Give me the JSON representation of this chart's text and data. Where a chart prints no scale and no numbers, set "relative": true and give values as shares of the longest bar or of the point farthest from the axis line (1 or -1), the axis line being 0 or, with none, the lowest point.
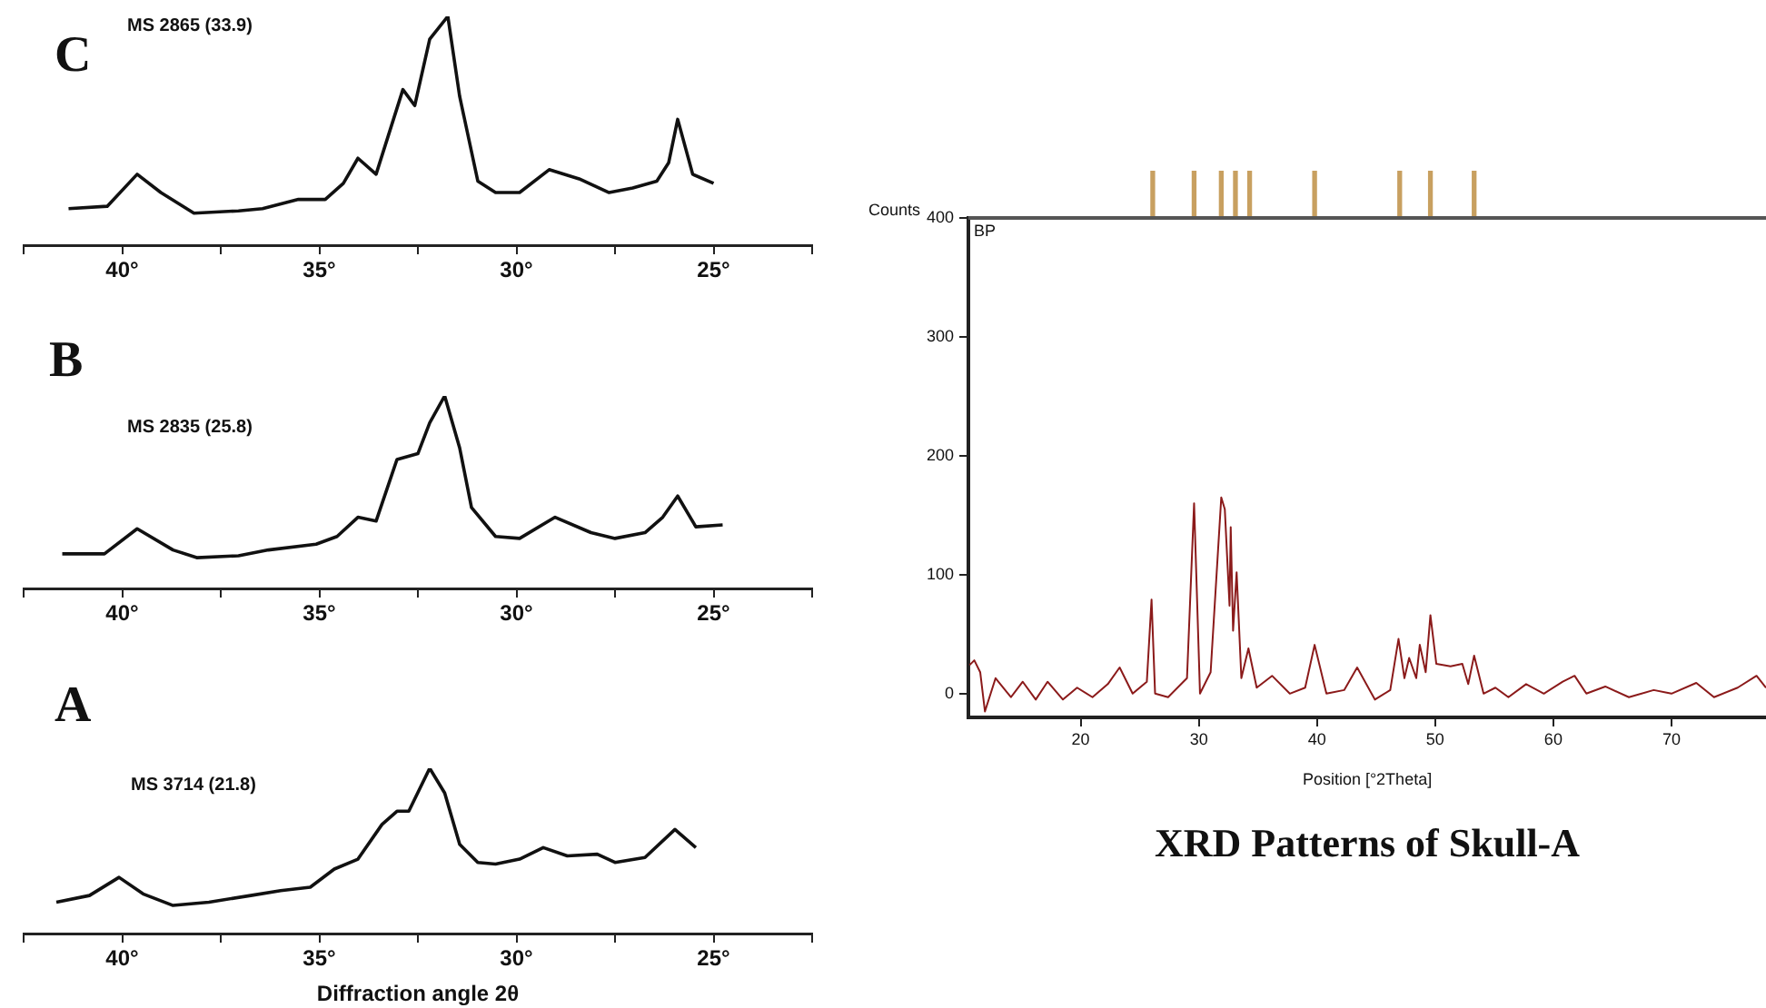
{
  "chart_data": [
    {
      "type": "line",
      "title": "C",
      "subtitle": "MS 2865 (33.9)",
      "relative": true,
      "grid": false,
      "legend": false,
      "marker": "none",
      "line_style": "solid",
      "xlim": [
        42.5,
        22.5
      ],
      "xticks": [
        {
          "value": 42.5,
          "label": null
        },
        {
          "value": 40,
          "label": "40°"
        },
        {
          "value": 37.5,
          "label": null
        },
        {
          "value": 35,
          "label": "35°"
        },
        {
          "value": 32.5,
          "label": null
        },
        {
          "value": 30,
          "label": "30°"
        },
        {
          "value": 27.5,
          "label": null
        },
        {
          "value": 25,
          "label": "25°"
        },
        {
          "value": 22.5,
          "label": null
        }
      ],
      "x": [
        41.36,
        40.38,
        39.62,
        39.02,
        38.18,
        37.05,
        36.44,
        35.53,
        34.85,
        34.39,
        34.02,
        33.56,
        32.88,
        32.58,
        32.2,
        31.74,
        31.44,
        30.98,
        30.53,
        29.92,
        29.17,
        28.41,
        27.65,
        27.05,
        26.44,
        26.14,
        25.91,
        25.53,
        25.0
      ],
      "series": [
        {
          "color": "#111111",
          "values": [
            0.16,
            0.17,
            0.31,
            0.23,
            0.14,
            0.15,
            0.16,
            0.2,
            0.2,
            0.27,
            0.38,
            0.31,
            0.68,
            0.61,
            0.9,
            1,
            0.65,
            0.28,
            0.23,
            0.23,
            0.33,
            0.29,
            0.23,
            0.25,
            0.28,
            0.36,
            0.55,
            0.31,
            0.27
          ]
        }
      ]
    },
    {
      "type": "line",
      "title": "B",
      "subtitle": "MS 2835 (25.8)",
      "relative": true,
      "grid": false,
      "legend": false,
      "marker": "none",
      "line_style": "solid",
      "xlim": [
        42.5,
        22.5
      ],
      "xticks": [
        {
          "value": 42.5,
          "label": null
        },
        {
          "value": 40,
          "label": "40°"
        },
        {
          "value": 37.5,
          "label": null
        },
        {
          "value": 35,
          "label": "35°"
        },
        {
          "value": 32.5,
          "label": null
        },
        {
          "value": 30,
          "label": "30°"
        },
        {
          "value": 27.5,
          "label": null
        },
        {
          "value": 25,
          "label": "25°"
        },
        {
          "value": 22.5,
          "label": null
        }
      ],
      "x": [
        41.52,
        40.45,
        39.62,
        38.71,
        38.11,
        37.05,
        36.29,
        35.08,
        34.55,
        34.02,
        33.56,
        33.03,
        32.5,
        32.2,
        31.82,
        31.44,
        31.14,
        30.53,
        29.92,
        29.02,
        28.11,
        27.5,
        26.74,
        26.29,
        25.91,
        25.45,
        24.77
      ],
      "series": [
        {
          "color": "#111111",
          "values": [
            0.18,
            0.18,
            0.31,
            0.2,
            0.16,
            0.17,
            0.2,
            0.23,
            0.27,
            0.37,
            0.35,
            0.67,
            0.7,
            0.86,
            1,
            0.73,
            0.42,
            0.27,
            0.26,
            0.37,
            0.29,
            0.26,
            0.29,
            0.37,
            0.48,
            0.32,
            0.33
          ]
        }
      ]
    },
    {
      "type": "line",
      "title": "A",
      "subtitle": "MS 3714 (21.8)",
      "xlabel": "Diffraction angle 2θ",
      "relative": true,
      "grid": false,
      "legend": false,
      "marker": "none",
      "line_style": "solid",
      "xlim": [
        42.5,
        22.5
      ],
      "xticks": [
        {
          "value": 42.5,
          "label": null
        },
        {
          "value": 40,
          "label": "40°"
        },
        {
          "value": 37.5,
          "label": null
        },
        {
          "value": 35,
          "label": "35°"
        },
        {
          "value": 32.5,
          "label": null
        },
        {
          "value": 30,
          "label": "30°"
        },
        {
          "value": 27.5,
          "label": null
        },
        {
          "value": 25,
          "label": "25°"
        },
        {
          "value": 22.5,
          "label": null
        }
      ],
      "x": [
        41.67,
        40.83,
        40.08,
        39.47,
        38.71,
        37.8,
        36.74,
        35.98,
        35.23,
        34.62,
        34.02,
        33.41,
        33.03,
        32.73,
        32.2,
        31.82,
        31.44,
        30.98,
        30.53,
        29.92,
        29.32,
        28.71,
        27.95,
        27.5,
        26.74,
        25.98,
        25.45
      ],
      "series": [
        {
          "color": "#111111",
          "values": [
            0.19,
            0.23,
            0.34,
            0.24,
            0.17,
            0.19,
            0.23,
            0.26,
            0.28,
            0.39,
            0.45,
            0.66,
            0.74,
            0.74,
            1,
            0.85,
            0.54,
            0.43,
            0.42,
            0.45,
            0.52,
            0.47,
            0.48,
            0.43,
            0.46,
            0.63,
            0.52
          ]
        }
      ]
    },
    {
      "type": "line",
      "title": "XRD Patterns of Skull-A",
      "xlabel": "Position [°2Theta]",
      "ylabel": "Counts",
      "annotations": [
        "BP"
      ],
      "grid": false,
      "legend": false,
      "marker": "none",
      "line_style": "solid",
      "xlim": [
        10.5,
        78
      ],
      "xticks": [
        20,
        30,
        40,
        50,
        60,
        70
      ],
      "ylim": [
        -20,
        400
      ],
      "yticks": [
        0,
        100,
        200,
        300,
        400
      ],
      "x": [
        10.6,
        11.0,
        11.5,
        11.9,
        12.8,
        14.1,
        15.1,
        16.2,
        17.2,
        18.5,
        19.7,
        21.0,
        22.3,
        23.3,
        24.4,
        25.6,
        26.0,
        26.3,
        27.4,
        29.0,
        29.6,
        30.1,
        31.0,
        31.9,
        32.2,
        32.6,
        32.7,
        32.9,
        33.2,
        33.6,
        34.2,
        34.9,
        36.2,
        37.7,
        39.0,
        39.8,
        40.8,
        42.3,
        43.4,
        44.9,
        46.2,
        46.9,
        47.4,
        47.8,
        48.4,
        48.7,
        49.2,
        49.6,
        50.1,
        51.3,
        52.3,
        52.8,
        53.3,
        54.1,
        55.1,
        56.2,
        57.7,
        59.2,
        60.8,
        61.8,
        62.8,
        64.4,
        66.4,
        68.5,
        70.0,
        72.1,
        73.6,
        75.6,
        77.2,
        78.0
      ],
      "series": [
        {
          "color": "#8b1a1a",
          "values": [
            24,
            28,
            18,
            -15,
            13,
            -3,
            10,
            -5,
            10,
            -5,
            5,
            -3,
            8,
            22,
            0,
            10,
            79,
            0,
            -3,
            13,
            160,
            0,
            18,
            165,
            155,
            74,
            140,
            53,
            102,
            13,
            38,
            5,
            15,
            0,
            5,
            41,
            0,
            3,
            22,
            -5,
            3,
            46,
            13,
            30,
            13,
            41,
            18,
            66,
            25,
            23,
            25,
            8,
            32,
            0,
            5,
            -3,
            8,
            0,
            10,
            15,
            0,
            6,
            -3,
            3,
            0,
            9,
            -3,
            5,
            15,
            5
          ]
        }
      ]
    },
    {
      "type": "bar",
      "relative": true,
      "tick_labels": false,
      "grid": false,
      "legend": false,
      "xlim": [
        10.5,
        78
      ],
      "x": [
        26.1,
        29.6,
        31.9,
        33.1,
        34.3,
        39.8,
        47.0,
        49.6,
        53.3
      ],
      "series": [
        {
          "color": "#c8a060",
          "values": [
            1,
            1,
            1,
            1,
            1,
            1,
            1,
            1,
            1
          ]
        }
      ]
    }
  ]
}
